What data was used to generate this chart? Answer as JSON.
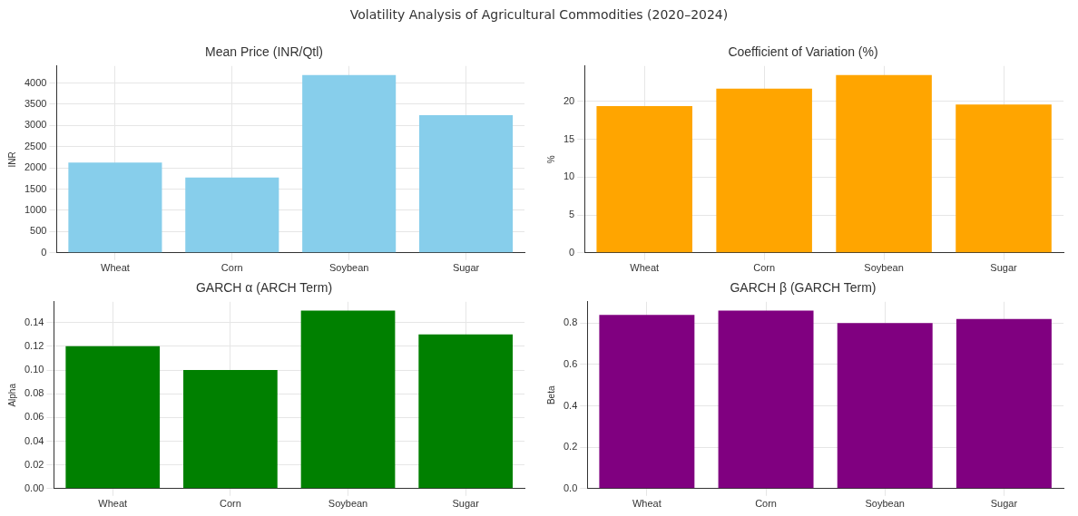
{
  "chart_data": [
    {
      "type": "bar",
      "title": "Mean Price (INR/Qtl)",
      "ylabel": "INR",
      "annotations": [
        "Volatility Analysis of Agricultural Commodities (2020–2024)"
      ],
      "categories": [
        "Wheat",
        "Corn",
        "Soybean",
        "Sugar"
      ],
      "values": [
        2125,
        1775,
        4190,
        3240
      ],
      "color": "#87ceeb",
      "ylim": [
        0,
        4400
      ],
      "yticks": [
        0,
        500,
        1000,
        1500,
        2000,
        2500,
        3000,
        3500,
        4000
      ],
      "grid": true
    },
    {
      "type": "bar",
      "title": "Coefficient of Variation (%)",
      "ylabel": "%",
      "categories": [
        "Wheat",
        "Corn",
        "Soybean",
        "Sugar"
      ],
      "values": [
        19.4,
        21.7,
        23.5,
        19.6
      ],
      "color": "#ffa500",
      "ylim": [
        0,
        24.7
      ],
      "yticks": [
        0,
        5,
        10,
        15,
        20
      ],
      "grid": true
    },
    {
      "type": "bar",
      "title": "GARCH α (ARCH Term)",
      "ylabel": "Alpha",
      "categories": [
        "Wheat",
        "Corn",
        "Soybean",
        "Sugar"
      ],
      "values": [
        0.12,
        0.1,
        0.15,
        0.13
      ],
      "color": "#008000",
      "ylim": [
        0,
        0.1575
      ],
      "yticks": [
        {
          "value": 0,
          "label": "0.00"
        },
        {
          "value": 0.02,
          "label": "0.02"
        },
        {
          "value": 0.04,
          "label": "0.04"
        },
        {
          "value": 0.06,
          "label": "0.06"
        },
        {
          "value": 0.08,
          "label": "0.08"
        },
        {
          "value": 0.1,
          "label": "0.10"
        },
        {
          "value": 0.12,
          "label": "0.12"
        },
        {
          "value": 0.14,
          "label": "0.14"
        }
      ],
      "grid": true
    },
    {
      "type": "bar",
      "title": "GARCH β (GARCH Term)",
      "ylabel": "Beta",
      "categories": [
        "Wheat",
        "Corn",
        "Soybean",
        "Sugar"
      ],
      "values": [
        0.84,
        0.86,
        0.8,
        0.82
      ],
      "color": "#800080",
      "ylim": [
        0,
        0.903
      ],
      "yticks": [
        {
          "value": 0,
          "label": "0.0"
        },
        {
          "value": 0.2,
          "label": "0.2"
        },
        {
          "value": 0.4,
          "label": "0.4"
        },
        {
          "value": 0.6,
          "label": "0.6"
        },
        {
          "value": 0.8,
          "label": "0.8"
        }
      ],
      "grid": true
    }
  ]
}
